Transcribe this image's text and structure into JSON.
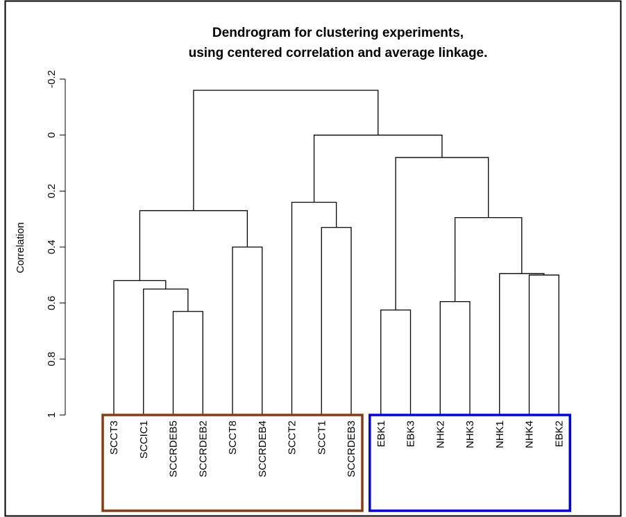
{
  "chart_data": {
    "type": "dendrogram",
    "title_line1": "Dendrogram for clustering experiments,",
    "title_line2": "using centered correlation and average linkage.",
    "ylabel": "Correlation",
    "xlabel": "",
    "yaxis": {
      "ticks": [
        -0.2,
        0,
        0.2,
        0.4,
        0.6,
        0.8,
        1
      ],
      "tick_labels": [
        "-0.2",
        "0",
        "0.2",
        "0.4",
        "0.6",
        "0.8",
        "1"
      ],
      "inverted": true,
      "range": [
        -0.2,
        1
      ]
    },
    "leaves": [
      "SCCT3",
      "SCCIC1",
      "SCCRDEB5",
      "SCCRDEB2",
      "SCCT8",
      "SCCRDEB4",
      "SCCT2",
      "SCCT1",
      "SCCRDEB3",
      "EBK1",
      "EBK3",
      "NHK2",
      "NHK3",
      "NHK1",
      "NHK4",
      "EBK2"
    ],
    "merges": [
      {
        "id": "m1",
        "left": "SCCRDEB5",
        "right": "SCCRDEB2",
        "height": 0.63
      },
      {
        "id": "m2",
        "left": "SCCIC1",
        "right": "m1",
        "height": 0.55
      },
      {
        "id": "m3",
        "left": "SCCT3",
        "right": "m2",
        "height": 0.52
      },
      {
        "id": "m4",
        "left": "SCCT8",
        "right": "SCCRDEB4",
        "height": 0.4
      },
      {
        "id": "m5",
        "left": "m3",
        "right": "m4",
        "height": 0.27
      },
      {
        "id": "m6",
        "left": "SCCT1",
        "right": "SCCRDEB3",
        "height": 0.33
      },
      {
        "id": "m7",
        "left": "SCCT2",
        "right": "m6",
        "height": 0.24
      },
      {
        "id": "m8",
        "left": "EBK1",
        "right": "EBK3",
        "height": 0.625
      },
      {
        "id": "m9",
        "left": "NHK2",
        "right": "NHK3",
        "height": 0.595
      },
      {
        "id": "m10",
        "left": "NHK4",
        "right": "EBK2",
        "height": 0.5
      },
      {
        "id": "m11",
        "left": "NHK1",
        "right": "m10",
        "height": 0.495
      },
      {
        "id": "m12",
        "left": "m9",
        "right": "m11",
        "height": 0.295
      },
      {
        "id": "m13",
        "left": "m8",
        "right": "m12",
        "height": 0.08
      },
      {
        "id": "m14",
        "left": "m7",
        "right": "m13",
        "height": 0.0
      },
      {
        "id": "m15",
        "left": "m5",
        "right": "m14",
        "height": -0.16
      }
    ],
    "groups": [
      {
        "leaves": [
          "SCCT3",
          "SCCIC1",
          "SCCRDEB5",
          "SCCRDEB2",
          "SCCT8",
          "SCCRDEB4",
          "SCCT2",
          "SCCT1",
          "SCCRDEB3"
        ],
        "color": "#8B3A10"
      },
      {
        "leaves": [
          "EBK1",
          "EBK3",
          "NHK2",
          "NHK3",
          "NHK1",
          "NHK4",
          "EBK2"
        ],
        "color": "#0000EE"
      }
    ],
    "grid": false,
    "legend": "none"
  }
}
